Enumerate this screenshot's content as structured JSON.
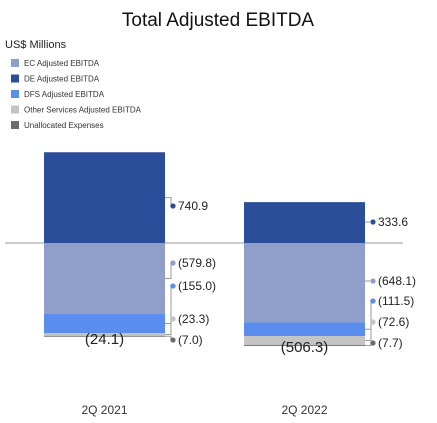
{
  "chart_data": {
    "type": "bar",
    "stacked": true,
    "title": "Total Adjusted EBITDA",
    "units_label": "US$ Millions",
    "categories": [
      "2Q 2021",
      "2Q 2022"
    ],
    "series": [
      {
        "name": "EC Adjusted EBITDA",
        "color": "#8f9fc9",
        "values": [
          -579.8,
          -648.1
        ],
        "labels": [
          "(579.8)",
          "(648.1)"
        ]
      },
      {
        "name": "DE Adjusted EBITDA",
        "color": "#2b4e9b",
        "values": [
          740.9,
          333.6
        ],
        "labels": [
          "740.9",
          "333.6"
        ]
      },
      {
        "name": "DFS Adjusted EBITDA",
        "color": "#5b8def",
        "values": [
          -155.0,
          -111.5
        ],
        "labels": [
          "(155.0)",
          "(111.5)"
        ]
      },
      {
        "name": "Other Services Adjusted EBITDA",
        "color": "#c4c4c4",
        "values": [
          -23.3,
          -72.6
        ],
        "labels": [
          "(23.3)",
          "(72.6)"
        ]
      },
      {
        "name": "Unallocated Expenses",
        "color": "#6b6b6b",
        "values": [
          -7.0,
          -7.7
        ],
        "labels": [
          "(7.0)",
          "(7.7)"
        ]
      }
    ],
    "totals": [
      -24.1,
      -506.3
    ],
    "total_labels": [
      "(24.1)",
      "(506.3)"
    ],
    "legend_position": "top-left",
    "grid": false
  }
}
